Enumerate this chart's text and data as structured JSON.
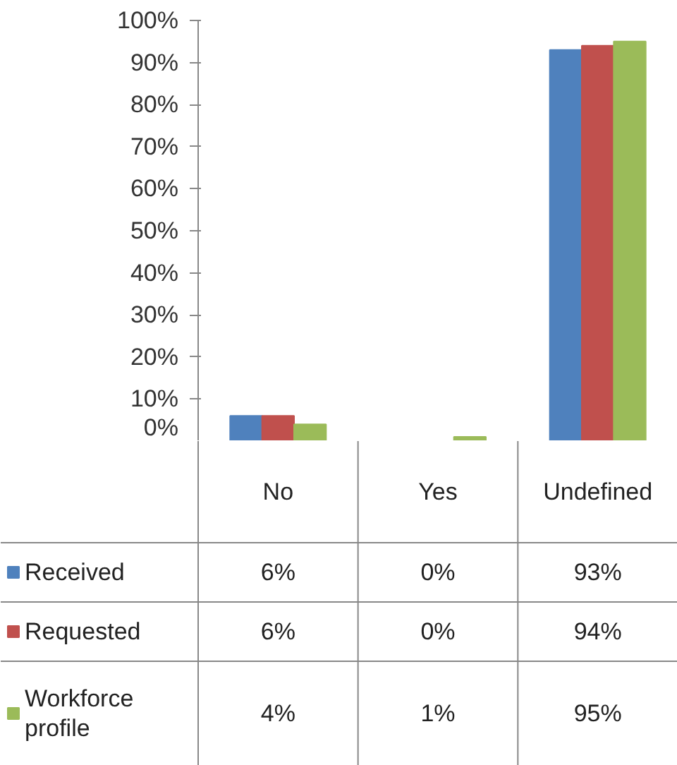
{
  "chart_data": {
    "type": "bar",
    "categories": [
      "No",
      "Yes",
      "Undefined"
    ],
    "series": [
      {
        "name": "Received",
        "color": "#4f81bd",
        "values": [
          6,
          0,
          93
        ],
        "value_labels": [
          "6%",
          "0%",
          "93%"
        ]
      },
      {
        "name": "Requested",
        "color": "#c0504d",
        "values": [
          6,
          0,
          94
        ],
        "value_labels": [
          "6%",
          "0%",
          "94%"
        ]
      },
      {
        "name": "Workforce profile",
        "color": "#9bbb59",
        "values": [
          4,
          1,
          95
        ],
        "value_labels": [
          "4%",
          "1%",
          "95%"
        ]
      }
    ],
    "ylim": [
      0,
      100
    ],
    "yticks": [
      {
        "value": 0,
        "label": "0%"
      },
      {
        "value": 10,
        "label": "10%"
      },
      {
        "value": 20,
        "label": "20%"
      },
      {
        "value": 30,
        "label": "30%"
      },
      {
        "value": 40,
        "label": "40%"
      },
      {
        "value": 50,
        "label": "50%"
      },
      {
        "value": 60,
        "label": "60%"
      },
      {
        "value": 70,
        "label": "70%"
      },
      {
        "value": 80,
        "label": "80%"
      },
      {
        "value": 90,
        "label": "90%"
      },
      {
        "value": 100,
        "label": "100%"
      }
    ],
    "grid": false,
    "legend": "bottom left"
  }
}
